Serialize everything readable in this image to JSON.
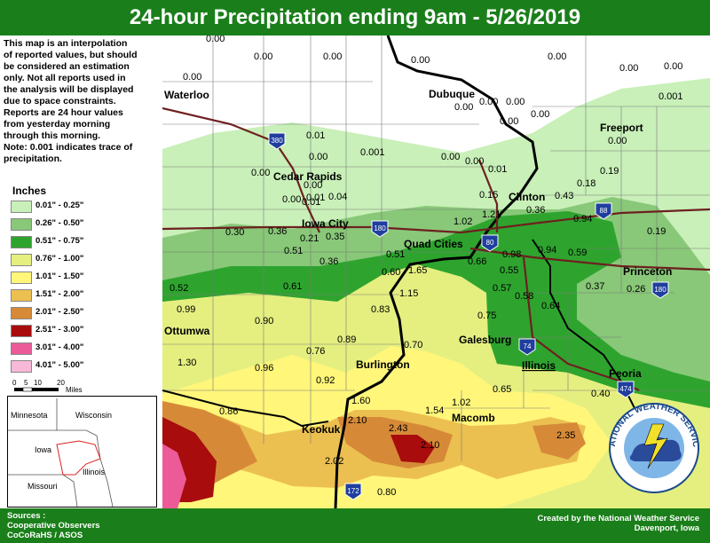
{
  "title": "24-hour Precipitation ending 9am - 5/26/2019",
  "disclaimer": [
    "This map is an interpolation",
    "of reported values, but should",
    "be considered an estimation",
    "only. Not all reports used in",
    "the analysis will be displayed",
    "due to space constraints.",
    "Reports are 24 hour values",
    "from yesterday morning",
    "through this morning.",
    "Note: 0.001 indicates trace of",
    "precipitation."
  ],
  "legend": {
    "title": "Inches",
    "items": [
      {
        "label": "0.01\" - 0.25\"",
        "color": "#c8f0b8"
      },
      {
        "label": "0.26\" - 0.50\"",
        "color": "#88c878"
      },
      {
        "label": "0.51\" - 0.75\"",
        "color": "#2ea42e"
      },
      {
        "label": "0.76\" - 1.00\"",
        "color": "#e4ef80"
      },
      {
        "label": "1.01\" - 1.50\"",
        "color": "#fff67a"
      },
      {
        "label": "1.51\" - 2.00\"",
        "color": "#ecc050"
      },
      {
        "label": "2.01\" - 2.50\"",
        "color": "#d68a38"
      },
      {
        "label": "2.51\" - 3.00\"",
        "color": "#a80c0c"
      },
      {
        "label": "3.01\" - 4.00\"",
        "color": "#ec5a98"
      },
      {
        "label": "4.01\" - 5.00\"",
        "color": "#f8b8d8"
      }
    ]
  },
  "scale": {
    "ticks": [
      "0",
      "5",
      "10",
      "20"
    ],
    "unit": "Miles"
  },
  "inset": {
    "states": [
      "Minnesota",
      "Wisconsin",
      "Iowa",
      "Illinois",
      "Missouri"
    ]
  },
  "footer": {
    "sources_title": "Sources :",
    "sources": [
      "Cooperative Observers",
      "CoCoRaHS / ASOS"
    ],
    "credit_line1": "Created by the National Weather Service",
    "credit_line2": "Davenport, Iowa"
  },
  "logo": {
    "ring_text": "NATIONAL WEATHER SERVICE"
  },
  "cities": [
    {
      "name": "Waterloo"
    },
    {
      "name": "Dubuque"
    },
    {
      "name": "Freeport"
    },
    {
      "name": "Cedar Rapids"
    },
    {
      "name": "Clinton"
    },
    {
      "name": "Iowa City"
    },
    {
      "name": "Quad Cities"
    },
    {
      "name": "Princeton"
    },
    {
      "name": "Ottumwa"
    },
    {
      "name": "Galesburg"
    },
    {
      "name": "Illinois"
    },
    {
      "name": "Burlington"
    },
    {
      "name": "Peoria"
    },
    {
      "name": "Keokuk"
    },
    {
      "name": "Macomb"
    }
  ],
  "interstates": [
    "380",
    "180",
    "88",
    "80",
    "180",
    "74",
    "474",
    "172"
  ],
  "precip_values": [
    "0.00",
    "0.00",
    "0.00",
    "0.00",
    "0.00",
    "0.00",
    "0.00",
    "0.00",
    "0.00",
    "0.00",
    "0.00",
    "0.00",
    "0.00",
    "0.001",
    "0.00",
    "0.00",
    "0.00",
    "0.01",
    "0.01",
    "0.00",
    "0.001",
    "0.19",
    "0.00",
    "0.00",
    "0.01",
    "0.18",
    "0.00",
    "0.01",
    "0.04",
    "0.15",
    "0.43",
    "1.02",
    "1.21",
    "0.36",
    "0.94",
    "0.30",
    "0.36",
    "0.21",
    "0.35",
    "0.19",
    "0.51",
    "0.98",
    "0.94",
    "0.59",
    "0.36",
    "0.51",
    "1.65",
    "0.66",
    "0.55",
    "0.60",
    "0.52",
    "0.61",
    "0.57",
    "0.58",
    "0.37",
    "0.26",
    "1.15",
    "0.83",
    "0.64",
    "0.99",
    "0.90",
    "0.75",
    "0.89",
    "0.76",
    "0.70",
    "1.30",
    "0.96",
    "0.92",
    "0.65",
    "0.40",
    "0.86",
    "1.60",
    "1.54",
    "1.02",
    "2.10",
    "2.43",
    "2.35",
    "2.10",
    "2.02",
    "0.80"
  ]
}
